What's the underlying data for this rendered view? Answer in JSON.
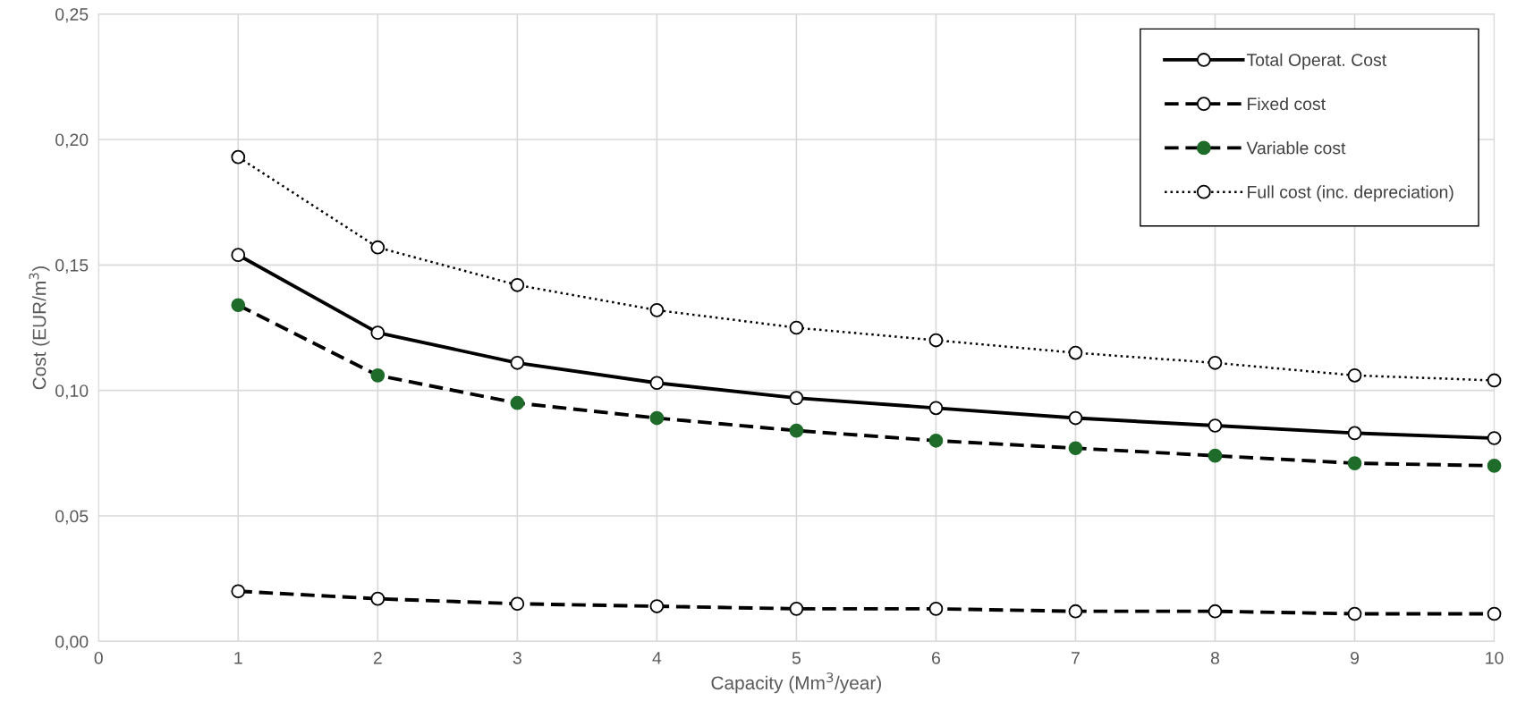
{
  "chart_data": {
    "type": "line",
    "xlabel": "Capacity (Mm$^{3}$/year)",
    "ylabel": "Cost (EUR/m$^{3}$)",
    "x": [
      1,
      2,
      3,
      4,
      5,
      6,
      7,
      8,
      9,
      10
    ],
    "xlim": [
      0,
      10
    ],
    "xticks": [
      0,
      1,
      2,
      3,
      4,
      5,
      6,
      7,
      8,
      9,
      10
    ],
    "ylim": [
      0,
      0.25
    ],
    "yticks": [
      {
        "value": 0,
        "label": "0,00"
      },
      {
        "value": 0.05,
        "label": "0,05"
      },
      {
        "value": 0.1,
        "label": "0,10"
      },
      {
        "value": 0.15,
        "label": "0,15"
      },
      {
        "value": 0.2,
        "label": "0,20"
      },
      {
        "value": 0.25,
        "label": "0,25"
      }
    ],
    "grid": true,
    "legend": "top right",
    "marker": "circle",
    "series": [
      {
        "name": "Total Operat. Cost",
        "color": "#000000",
        "line_style": "solid",
        "values": [
          0.154,
          0.123,
          0.111,
          0.103,
          0.097,
          0.093,
          0.089,
          0.086,
          0.083,
          0.081
        ]
      },
      {
        "name": "Fixed cost",
        "color": "#000000",
        "line_style": "dashed",
        "values": [
          0.02,
          0.017,
          0.015,
          0.014,
          0.013,
          0.013,
          0.012,
          0.012,
          0.011,
          0.011
        ]
      },
      {
        "name": "Variable cost",
        "color": "#1e6b2a",
        "line_style": "dashed",
        "values": [
          0.134,
          0.106,
          0.095,
          0.089,
          0.084,
          0.08,
          0.077,
          0.074,
          0.071,
          0.07
        ]
      },
      {
        "name": "Full cost (inc. depreciation)",
        "color": "#000000",
        "line_style": "dotted",
        "values": [
          0.193,
          0.157,
          0.142,
          0.132,
          0.125,
          0.12,
          0.115,
          0.111,
          0.106,
          0.104
        ]
      }
    ]
  }
}
